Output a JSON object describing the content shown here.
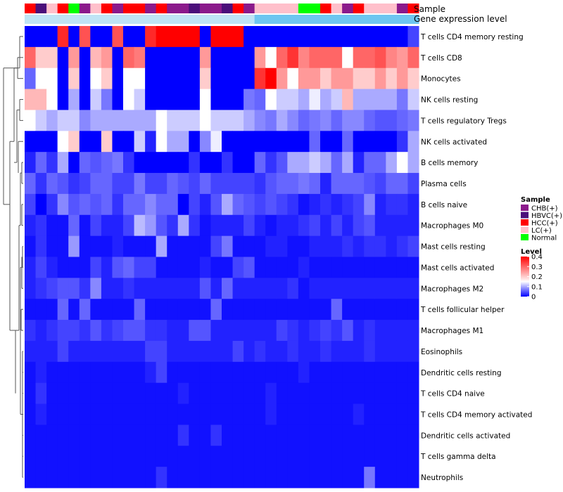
{
  "chart_data": {
    "type": "heatmap",
    "annotation_titles": {
      "sample": "Sample",
      "level": "Gene expression level"
    },
    "sample_colors": {
      "CHB(+)": "#8B1A8B",
      "HBVC(+)": "#4B0F7A",
      "HCC(+)": "#FF0000",
      "LC(+)": "#FFC0CB",
      "Normal": "#00FF00"
    },
    "level_bar_color": "#6EC6F0",
    "level_bar_light_color": "#BFE4F5",
    "columns": [
      {
        "sample": "HCC(+)",
        "level": "light"
      },
      {
        "sample": "HBVC(+)",
        "level": "light"
      },
      {
        "sample": "LC(+)",
        "level": "light"
      },
      {
        "sample": "HCC(+)",
        "level": "light"
      },
      {
        "sample": "Normal",
        "level": "light"
      },
      {
        "sample": "CHB(+)",
        "level": "light"
      },
      {
        "sample": "LC(+)",
        "level": "light"
      },
      {
        "sample": "HCC(+)",
        "level": "light"
      },
      {
        "sample": "CHB(+)",
        "level": "light"
      },
      {
        "sample": "HCC(+)",
        "level": "light"
      },
      {
        "sample": "HCC(+)",
        "level": "light"
      },
      {
        "sample": "CHB(+)",
        "level": "light"
      },
      {
        "sample": "HCC(+)",
        "level": "light"
      },
      {
        "sample": "CHB(+)",
        "level": "light"
      },
      {
        "sample": "CHB(+)",
        "level": "light"
      },
      {
        "sample": "HBVC(+)",
        "level": "light"
      },
      {
        "sample": "CHB(+)",
        "level": "light"
      },
      {
        "sample": "CHB(+)",
        "level": "light"
      },
      {
        "sample": "HBVC(+)",
        "level": "light"
      },
      {
        "sample": "HCC(+)",
        "level": "light"
      },
      {
        "sample": "CHB(+)",
        "level": "light"
      },
      {
        "sample": "LC(+)",
        "level": "dark"
      },
      {
        "sample": "LC(+)",
        "level": "dark"
      },
      {
        "sample": "LC(+)",
        "level": "dark"
      },
      {
        "sample": "LC(+)",
        "level": "dark"
      },
      {
        "sample": "Normal",
        "level": "dark"
      },
      {
        "sample": "Normal",
        "level": "dark"
      },
      {
        "sample": "HCC(+)",
        "level": "dark"
      },
      {
        "sample": "LC(+)",
        "level": "dark"
      },
      {
        "sample": "CHB(+)",
        "level": "dark"
      },
      {
        "sample": "HCC(+)",
        "level": "dark"
      },
      {
        "sample": "LC(+)",
        "level": "dark"
      },
      {
        "sample": "LC(+)",
        "level": "dark"
      },
      {
        "sample": "LC(+)",
        "level": "dark"
      },
      {
        "sample": "CHB(+)",
        "level": "dark"
      },
      {
        "sample": "HCC(+)",
        "level": "dark"
      }
    ],
    "rows": [
      "T cells CD4 memory resting",
      "T cells CD8",
      "Monocytes",
      "NK cells resting",
      "T cells regulatory  Tregs",
      "NK cells activated",
      "B cells memory",
      "Plasma cells",
      "B cells naive",
      "Macrophages M0",
      "Mast cells resting",
      "Mast cells activated",
      "Macrophages M2",
      "T cells follicular helper",
      "Macrophages M1",
      "Eosinophils",
      "Dendritic cells resting",
      "T cells CD4 naive",
      "T cells CD4 memory activated",
      "Dendritic cells activated",
      "T cells gamma delta",
      "Neutrophils"
    ],
    "values": [
      [
        0,
        0,
        0,
        0.36,
        0,
        0.32,
        0,
        0,
        0.32,
        0,
        0,
        0.36,
        0.4,
        0.4,
        0.4,
        0.4,
        0,
        0.4,
        0.4,
        0.4,
        0,
        0,
        0,
        0,
        0,
        0,
        0,
        0,
        0,
        0,
        0,
        0,
        0,
        0,
        0,
        0.04
      ],
      [
        0.3,
        0.2,
        0.2,
        0,
        0.25,
        0,
        0.22,
        0.25,
        0,
        0.3,
        0.28,
        0,
        0,
        0,
        0,
        0,
        0.25,
        0,
        0,
        0,
        0,
        0.25,
        0.15,
        0.3,
        0.35,
        0.27,
        0.3,
        0.3,
        0.3,
        0.15,
        0.3,
        0.3,
        0.32,
        0.27,
        0.25,
        0.3
      ],
      [
        0.06,
        0.15,
        0.15,
        0,
        0.2,
        0,
        0.15,
        0.2,
        0,
        0.15,
        0.15,
        0,
        0,
        0,
        0,
        0,
        0.2,
        0,
        0,
        0,
        0,
        0.35,
        0.4,
        0.25,
        0.15,
        0.25,
        0.25,
        0.2,
        0.25,
        0.25,
        0.2,
        0.2,
        0.25,
        0.2,
        0.25,
        0.2
      ],
      [
        0.22,
        0.22,
        0.15,
        0,
        0.1,
        0,
        0.12,
        0.07,
        0,
        0.15,
        0.12,
        0,
        0,
        0,
        0,
        0,
        0.15,
        0,
        0,
        0,
        0.07,
        0.06,
        0.15,
        0.12,
        0.12,
        0.1,
        0.14,
        0.1,
        0.12,
        0.22,
        0.1,
        0.1,
        0.1,
        0.1,
        0.07,
        0.12
      ],
      [
        0.15,
        0.12,
        0.1,
        0.12,
        0.12,
        0.08,
        0.1,
        0.1,
        0.1,
        0.1,
        0.1,
        0.1,
        0.15,
        0.12,
        0.12,
        0.12,
        0.15,
        0.12,
        0.12,
        0.12,
        0.1,
        0.08,
        0.07,
        0.1,
        0.08,
        0.06,
        0.07,
        0.08,
        0.06,
        0.08,
        0.08,
        0.06,
        0.05,
        0.05,
        0.06,
        0.07
      ],
      [
        0,
        0,
        0,
        0.15,
        0.2,
        0,
        0,
        0.2,
        0,
        0,
        0.12,
        0.02,
        0.15,
        0.1,
        0.1,
        0,
        0.08,
        0.14,
        0,
        0,
        0,
        0,
        0,
        0,
        0,
        0,
        0.06,
        0,
        0,
        0.06,
        0,
        0,
        0,
        0,
        0.03,
        0.1
      ],
      [
        0.02,
        0.06,
        0.03,
        0.1,
        0,
        0.06,
        0.05,
        0.06,
        0.07,
        0.03,
        0,
        0,
        0,
        0,
        0,
        0.03,
        0,
        0,
        0.03,
        0,
        0,
        0.06,
        0.03,
        0.05,
        0.1,
        0.1,
        0.12,
        0.1,
        0.06,
        0.1,
        0.02,
        0.06,
        0.06,
        0.1,
        0.15,
        0.1
      ],
      [
        0.06,
        0.03,
        0.06,
        0.05,
        0.03,
        0.04,
        0.06,
        0.06,
        0.04,
        0.04,
        0.07,
        0.04,
        0.04,
        0.06,
        0.05,
        0.04,
        0.06,
        0.04,
        0.04,
        0.04,
        0.04,
        0.03,
        0.05,
        0.06,
        0.06,
        0.07,
        0.06,
        0.02,
        0.06,
        0.06,
        0.06,
        0.05,
        0.04,
        0.06,
        0.06,
        0.04
      ],
      [
        0.04,
        0,
        0.03,
        0.08,
        0.05,
        0.06,
        0.05,
        0.06,
        0.03,
        0.06,
        0.06,
        0.08,
        0.06,
        0.06,
        0,
        0.04,
        0.02,
        0.05,
        0.1,
        0.06,
        0.05,
        0.04,
        0.05,
        0.04,
        0.03,
        0.01,
        0.02,
        0.03,
        0.02,
        0.03,
        0.04,
        0.08,
        0.02,
        0.03,
        0.03,
        0.02
      ],
      [
        0.02,
        0.03,
        0.01,
        0.01,
        0.06,
        0.01,
        0.04,
        0.02,
        0.02,
        0.04,
        0.11,
        0.09,
        0.05,
        0.03,
        0.1,
        0.03,
        0.01,
        0.02,
        0.02,
        0.02,
        0.04,
        0.02,
        0.01,
        0.02,
        0.02,
        0.03,
        0.04,
        0.02,
        0.04,
        0.02,
        0.04,
        0.05,
        0.02,
        0.02,
        0.02,
        0.02
      ],
      [
        0.01,
        0.03,
        0.01,
        0.01,
        0.09,
        0.01,
        0.01,
        0.01,
        0.02,
        0.01,
        0.01,
        0.01,
        0.1,
        0.01,
        0.01,
        0.01,
        0.01,
        0.04,
        0.07,
        0.01,
        0.01,
        0.01,
        0.02,
        0.02,
        0.01,
        0.01,
        0.02,
        0.02,
        0.02,
        0.03,
        0.02,
        0.03,
        0.03,
        0.02,
        0.03,
        0.04
      ],
      [
        0.02,
        0.04,
        0.02,
        0.01,
        0.01,
        0.01,
        0.04,
        0.02,
        0.05,
        0.06,
        0.04,
        0.04,
        0.01,
        0.01,
        0.01,
        0.01,
        0.02,
        0.01,
        0.01,
        0.04,
        0.05,
        0.01,
        0.01,
        0.01,
        0.01,
        0.02,
        0.01,
        0.01,
        0.01,
        0.01,
        0.01,
        0.01,
        0.01,
        0.01,
        0.01,
        0.01
      ],
      [
        0.02,
        0.03,
        0.04,
        0.05,
        0.05,
        0.03,
        0.08,
        0.02,
        0.02,
        0.03,
        0.02,
        0.02,
        0.02,
        0.02,
        0.02,
        0.02,
        0.05,
        0.02,
        0.06,
        0.02,
        0.02,
        0.02,
        0.02,
        0.02,
        0.03,
        0.01,
        0.02,
        0.02,
        0.02,
        0.02,
        0.02,
        0.02,
        0.02,
        0.02,
        0.02,
        0.02
      ],
      [
        0.01,
        0.01,
        0.01,
        0.06,
        0.01,
        0.06,
        0.01,
        0.01,
        0.01,
        0.01,
        0.06,
        0.01,
        0.01,
        0.01,
        0.01,
        0.01,
        0.01,
        0.06,
        0.01,
        0.01,
        0.01,
        0.01,
        0.01,
        0.01,
        0.01,
        0.01,
        0.01,
        0.01,
        0.06,
        0.01,
        0.01,
        0.01,
        0.01,
        0.01,
        0.01,
        0.01
      ],
      [
        0.03,
        0.02,
        0.03,
        0.04,
        0.04,
        0.03,
        0.05,
        0.03,
        0.04,
        0.05,
        0.05,
        0.03,
        0.03,
        0.02,
        0.02,
        0.05,
        0.05,
        0.02,
        0.02,
        0.02,
        0.02,
        0.02,
        0.02,
        0.04,
        0.03,
        0.02,
        0.03,
        0.04,
        0.03,
        0.05,
        0.02,
        0.03,
        0.02,
        0.02,
        0.02,
        0.02
      ],
      [
        0.02,
        0.02,
        0.02,
        0.04,
        0.02,
        0.02,
        0.02,
        0.02,
        0.02,
        0.02,
        0.02,
        0.04,
        0.04,
        0.02,
        0.02,
        0.02,
        0.02,
        0.02,
        0.02,
        0.04,
        0.02,
        0.03,
        0.02,
        0.02,
        0.03,
        0.02,
        0.02,
        0.03,
        0.02,
        0.02,
        0.02,
        0.03,
        0.02,
        0.02,
        0.02,
        0.02
      ],
      [
        0.01,
        0.02,
        0.01,
        0.01,
        0.01,
        0.01,
        0.01,
        0.01,
        0.01,
        0.01,
        0.01,
        0.02,
        0.04,
        0.01,
        0.01,
        0.01,
        0.01,
        0.01,
        0.01,
        0.01,
        0.01,
        0.01,
        0.01,
        0.01,
        0.01,
        0.02,
        0.01,
        0.01,
        0.01,
        0.01,
        0.01,
        0.01,
        0.01,
        0.01,
        0.01,
        0.01
      ],
      [
        0.01,
        0.03,
        0.01,
        0.01,
        0.01,
        0.01,
        0.01,
        0.01,
        0.01,
        0.01,
        0.01,
        0.01,
        0.01,
        0.01,
        0.02,
        0.01,
        0.01,
        0.01,
        0.01,
        0.01,
        0.01,
        0.01,
        0.02,
        0.01,
        0.01,
        0.01,
        0.01,
        0.01,
        0.01,
        0.01,
        0.01,
        0.01,
        0.01,
        0.01,
        0.01,
        0.01
      ],
      [
        0.01,
        0.02,
        0.01,
        0.01,
        0.01,
        0.01,
        0.01,
        0.01,
        0.01,
        0.01,
        0.01,
        0.01,
        0.01,
        0.01,
        0.01,
        0.01,
        0.01,
        0.01,
        0.01,
        0.01,
        0.01,
        0.01,
        0.02,
        0.01,
        0.01,
        0.01,
        0.01,
        0.01,
        0.01,
        0.01,
        0.02,
        0.01,
        0.01,
        0.01,
        0.01,
        0.01
      ],
      [
        0.01,
        0.01,
        0.01,
        0.01,
        0.01,
        0.01,
        0.01,
        0.01,
        0.01,
        0.01,
        0.01,
        0.01,
        0.01,
        0.01,
        0.03,
        0.01,
        0.01,
        0.03,
        0.01,
        0.01,
        0.01,
        0.01,
        0.01,
        0.01,
        0.01,
        0.01,
        0.01,
        0.01,
        0.01,
        0.01,
        0.01,
        0.01,
        0.01,
        0.01,
        0.01,
        0.01
      ],
      [
        0.01,
        0.01,
        0.01,
        0.01,
        0.01,
        0.01,
        0.01,
        0.01,
        0.01,
        0.01,
        0.01,
        0.01,
        0.01,
        0.01,
        0.01,
        0.01,
        0.01,
        0.01,
        0.01,
        0.01,
        0.01,
        0.01,
        0.01,
        0.01,
        0.01,
        0.01,
        0.01,
        0.01,
        0.01,
        0.01,
        0.01,
        0.01,
        0.01,
        0.01,
        0.01,
        0.01
      ],
      [
        0.01,
        0.01,
        0.01,
        0.01,
        0.01,
        0.01,
        0.01,
        0.01,
        0.01,
        0.01,
        0.01,
        0.01,
        0.03,
        0.01,
        0.01,
        0.01,
        0.01,
        0.01,
        0.01,
        0.01,
        0.01,
        0.01,
        0.01,
        0.01,
        0.01,
        0.01,
        0.01,
        0.01,
        0.01,
        0.01,
        0.01,
        0.07,
        0.01,
        0.01,
        0.01,
        0.01
      ]
    ],
    "legend": {
      "sample_title": "Sample",
      "sample_items": [
        "CHB(+)",
        "HBVC(+)",
        "HCC(+)",
        "LC(+)",
        "Normal"
      ],
      "level_title": "Level",
      "level_ticks": [
        "0.4",
        "0.3",
        "0.2",
        "0.1",
        "0"
      ],
      "level_tick_values": [
        0.4,
        0.3,
        0.2,
        0.1,
        0
      ],
      "scale": {
        "min": 0,
        "mid": 0.15,
        "max": 0.4,
        "low_color": "#0000FF",
        "mid_color": "#FFFFFF",
        "high_color": "#FF0000"
      }
    }
  }
}
